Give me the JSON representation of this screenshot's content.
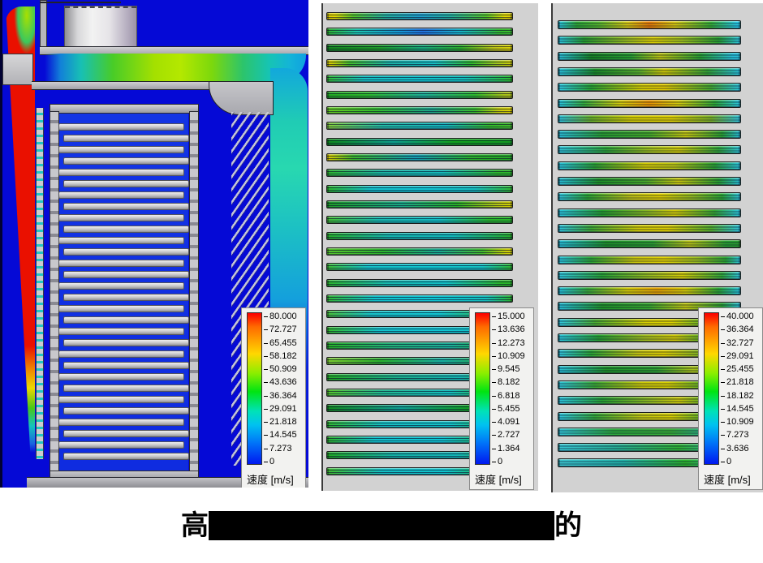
{
  "caption": {
    "start": "高",
    "end": "的"
  },
  "colors": {
    "scene_blue": "#0509d6",
    "panel_gray": "#d2d2d2",
    "legend_bg": "#f2f2f0",
    "jet_red": "#ea1000",
    "flow_green": "#a4e000",
    "flow_cyan": "#20ccb4",
    "caption_redaction": "#000000"
  },
  "panels": {
    "left": {
      "tray_count": 30,
      "legend": {
        "title": "速度 [m/s]",
        "ticks": [
          "80.000",
          "72.727",
          "65.455",
          "58.182",
          "50.909",
          "43.636",
          "36.364",
          "29.091",
          "21.818",
          "14.545",
          "7.273",
          "0"
        ]
      }
    },
    "middle": {
      "legend": {
        "title": "速度 [m/s]",
        "ticks": [
          "15.000",
          "13.636",
          "12.273",
          "10.909",
          "9.545",
          "8.182",
          "6.818",
          "5.455",
          "4.091",
          "2.727",
          "1.364",
          "0"
        ]
      },
      "bars": [
        "linear-gradient(90deg,#d8ca00 0%,#e2d800 4%,#54c228 14%,#22ac9c 32%,#1e9ec8 50%,#22ac9c 66%,#54c228 86%,#e2d800 96%,#d8ca00 100%)",
        "linear-gradient(90deg,#2eb42e 0%,#1cc4ae 16%,#1696d4 40%,#2272dc 52%,#16b2c4 72%,#34ba2c 94%,#3cbe30 100%)",
        "linear-gradient(90deg,#14871e 0%,#1e9c28 28%,#18a878 52%,#2aac2a 72%,#bcc414 90%,#dcd400 100%)",
        "linear-gradient(90deg,#d2cc00 2%,#44bc2c 12%,#1cb0a4 34%,#16bcc0 58%,#30b82c 78%,#a2c61c 92%,#cccc04 100%)",
        "linear-gradient(90deg,#34bc34 0%,#16c2c2 20%,#10c4cc 50%,#14c2bc 74%,#2cbc2c 100%)",
        "linear-gradient(90deg,#22aa22 0%,#2cb82c 22%,#1cae94 52%,#2cb82c 80%,#aac217 96%)",
        "linear-gradient(90deg,#66cc22 0%,#34bc2c 26%,#1ca488 56%,#3abc2c 80%,#c6cc0c 93%,#e0d400 100%)",
        "linear-gradient(90deg,#84cc3a 0%,#22baa4 30%,#14b4bc 64%,#34b82a 88%,#44bc2c 100%)",
        "linear-gradient(90deg,#108c1c 0%,#0fa08c 36%,#12a41e 68%,#149c22 100%)",
        "linear-gradient(90deg,#d4cc00 1%,#3cb42c 14%,#169eb0 48%,#2cb02c 78%,#26a626 100%)",
        "linear-gradient(90deg,#2eb42e 0%,#18b2a0 30%,#14b8b8 62%,#2cb42c 92%)",
        "linear-gradient(90deg,#2cb82c 0%,#12c2cc 24%,#10c6d2 55%,#16c0c0 80%,#30bc30 100%)",
        "linear-gradient(90deg,#1e9c26 0%,#1aa884 40%,#28ae28 70%,#b4c414 92%,#d4d000 100%)",
        "linear-gradient(90deg,#44c034 0%,#18bcb0 28%,#12c0c4 60%,#28b82a 88%)",
        "linear-gradient(90deg,#28b028 0%,#14b4ac 34%,#12b8b8 68%,#26ac26 100%)",
        "linear-gradient(90deg,#56c42c 0%,#2cb42c 30%,#1aa890 60%,#44ba2c 84%,#ccce08 97%)",
        "linear-gradient(90deg,#3cbc34 0%,#14c2c8 22%,#10c6d0 56%,#14c2c2 84%,#2cb82c 100%)",
        "linear-gradient(90deg,#2cb42c 0%,#16b8ac 32%,#12bec4 64%,#28b428 94%)",
        "linear-gradient(90deg,#34b834 0%,#12c4cc 26%,#10c8d4 58%,#16c0bc 86%,#2cb42c 100%)",
        "linear-gradient(90deg,#48c038 0%,#16c4c8 24%,#12c6d0 60%,#2eb82e 96%)",
        "linear-gradient(90deg,#34bc2c 0%,#12c4cc 28%,#10c6d2 62%,#14c0c0 88%,#28b428 100%)",
        "linear-gradient(90deg,#28b028 0%,#22b278 34%,#1cae98 66%,#26ae26 100%)",
        "linear-gradient(90deg,#7ccc30 0%,#2cb42c 28%,#18b0a0 62%,#2cb02c 100%)",
        "linear-gradient(90deg,#24ac24 0%,#1cb08c 38%,#16b4b0 72%,#28ae28 100%)",
        "linear-gradient(90deg,#54c42c 0%,#20b890 30%,#14bcbc 66%,#2ab42a 94%)",
        "linear-gradient(90deg,#128c20 0%,#10a092 40%,#12a01e 78%,#16a424 100%)",
        "linear-gradient(90deg,#30b830 0%,#14c0c0 30%,#12c2c8 66%,#28b428 100%)",
        "linear-gradient(90deg,#2cb42c 0%,#12c4cc 26%,#10c6d2 62%,#2cb42c 100%)",
        "linear-gradient(90deg,#20a824 0%,#14b0a4 36%,#12b4b4 70%,#24aa24 100%)",
        "linear-gradient(90deg,#40bc30 0%,#14c0c4 30%,#10c4cc 64%,#28b028 96%)"
      ]
    },
    "right": {
      "legend": {
        "title": "速度 [m/s]",
        "ticks": [
          "40.000",
          "36.364",
          "32.727",
          "29.091",
          "25.455",
          "21.818",
          "18.182",
          "14.545",
          "10.909",
          "7.273",
          "3.636",
          "0"
        ]
      },
      "bars": [
        "linear-gradient(90deg,#28c8e2 0%,#2ca834 10%,#54b82c 22%,#d8ca10 38%,#e87c04 50%,#d8ca10 64%,#34b034 84%,#28c8e2 98%)",
        "linear-gradient(90deg,#2cc8e0 0%,#28a030 14%,#9cc01e 38%,#dcd000 52%,#a0c41c 68%,#28a030 88%,#2cc8e0 100%)",
        "linear-gradient(90deg,#28c0d8 0%,#178522 18%,#28a030 40%,#bcc412 56%,#28a030 78%,#28c0d8 96%)",
        "linear-gradient(90deg,#2cc8e0 0%,#1a8f28 20%,#58b42a 44%,#d2cc06 58%,#34a834 82%,#2cc8e0 100%)",
        "linear-gradient(90deg,#30d0e8 0%,#28a830 18%,#d8d000 46%,#e4cc00 58%,#44ac30 84%,#2cc8e0 100%)",
        "linear-gradient(90deg,#28c8e0 0%,#34ac3c 14%,#d4cc08 34%,#e89400 50%,#d4cc08 66%,#2ca834 86%,#28c8e0 100%)",
        "linear-gradient(90deg,#30c8e0 0%,#6cb428 18%,#d8d200 40%,#e2d400 62%,#7cb426 84%,#30c8e0 100%)",
        "linear-gradient(90deg,#28c0d8 0%,#28a030 24%,#44ac28 50%,#c4c80e 70%,#28a030 90%,#28c0d8 100%)",
        "linear-gradient(90deg,#30c8dc 0%,#2ca838 26%,#a8c41a 52%,#d0cc06 66%,#30a838 88%,#30c8dc 100%)",
        "linear-gradient(90deg,#2cc8e0 0%,#2ba432 20%,#d6ce04 48%,#bcc812 64%,#2ba432 86%,#2cc8e0 100%)",
        "linear-gradient(90deg,#28c0d8 0%,#1e9428 22%,#48ac2a 48%,#c8c80c 66%,#28a030 88%,#28c0d8 100%)",
        "linear-gradient(90deg,#30c8e0 0%,#2ca834 16%,#c0c414 40%,#e0d000 56%,#90bc20 74%,#2ca834 90%,#30c8e0 100%)",
        "linear-gradient(90deg,#2cc8e0 0%,#24a02e 24%,#84b822 48%,#d2cc06 64%,#34a834 86%,#2cc8e0 100%)",
        "linear-gradient(90deg,#30c8e0 0%,#40ac34 18%,#d4ce04 44%,#e0d000 60%,#54b02c 84%,#30c8e0 100%)",
        "linear-gradient(90deg,#28c0d8 0%,#1e9428 26%,#2ca030 52%,#b8c414 72%,#28a030 92%)",
        "linear-gradient(90deg,#2cc8e0 0%,#2ca834 18%,#ccc80a 42%,#e2d200 58%,#9cc01e 76%,#2ca834 92%,#2cc8e0 100%)",
        "linear-gradient(90deg,#30c8dc 0%,#28a434 24%,#98be1e 50%,#d4ce04 68%,#30a838 90%,#30c8dc 100%)",
        "linear-gradient(90deg,#28c8e0 0%,#38ac3c 16%,#d6ce06 38%,#e8a400 54%,#d6ce06 70%,#2ca834 88%,#28c8e0 100%)",
        "linear-gradient(90deg,#28c0d8 0%,#209628 24%,#38a82e 50%,#c0c610 70%,#28a030 90%,#28c0d8 100%)",
        "linear-gradient(90deg,#30c8e0 0%,#48ac30 20%,#d8d000 48%,#dcd200 62%,#48ac30 84%,#30c8e0 100%)",
        "linear-gradient(90deg,#2cc8de 0%,#28a432 22%,#a4c01c 48%,#d2cc06 64%,#2ca834 86%,#2cc8de 100%)",
        "linear-gradient(90deg,#30c8e0 0%,#2ca834 18%,#c8c80c 44%,#e0d000 58%,#84b822 78%,#2ca834 94%)",
        "linear-gradient(90deg,#28c0d8 0%,#1e9428 26%,#2ca030 54%,#aac218 74%,#249c2c 94%)",
        "linear-gradient(90deg,#30c8dc 0%,#3cac34 20%,#ccca08 46%,#d8d000 60%,#44ac30 84%,#30c8dc 100%)",
        "linear-gradient(90deg,#2cc8e0 0%,#28a432 24%,#90bc20 50%,#ccca08 66%,#2ca834 88%,#2cc8e0 100%)",
        "linear-gradient(90deg,#30c8e0 0%,#34a838 20%,#c4c80e 46%,#d8d000 62%,#40ac30 84%,#30c8e0 100%)",
        "linear-gradient(90deg,#34c8d8 0%,#2cac3c 30%,#38b038 62%,#28b09c 86%,#30c0cc 100%)",
        "linear-gradient(90deg,#38c8d4 0%,#28b094 32%,#30b434 66%,#34c0c8 100%)",
        "linear-gradient(90deg,#3cc8d0 0%,#22b4a8 36%,#2cb42c 70%,#34c4cc 100%)"
      ]
    }
  }
}
